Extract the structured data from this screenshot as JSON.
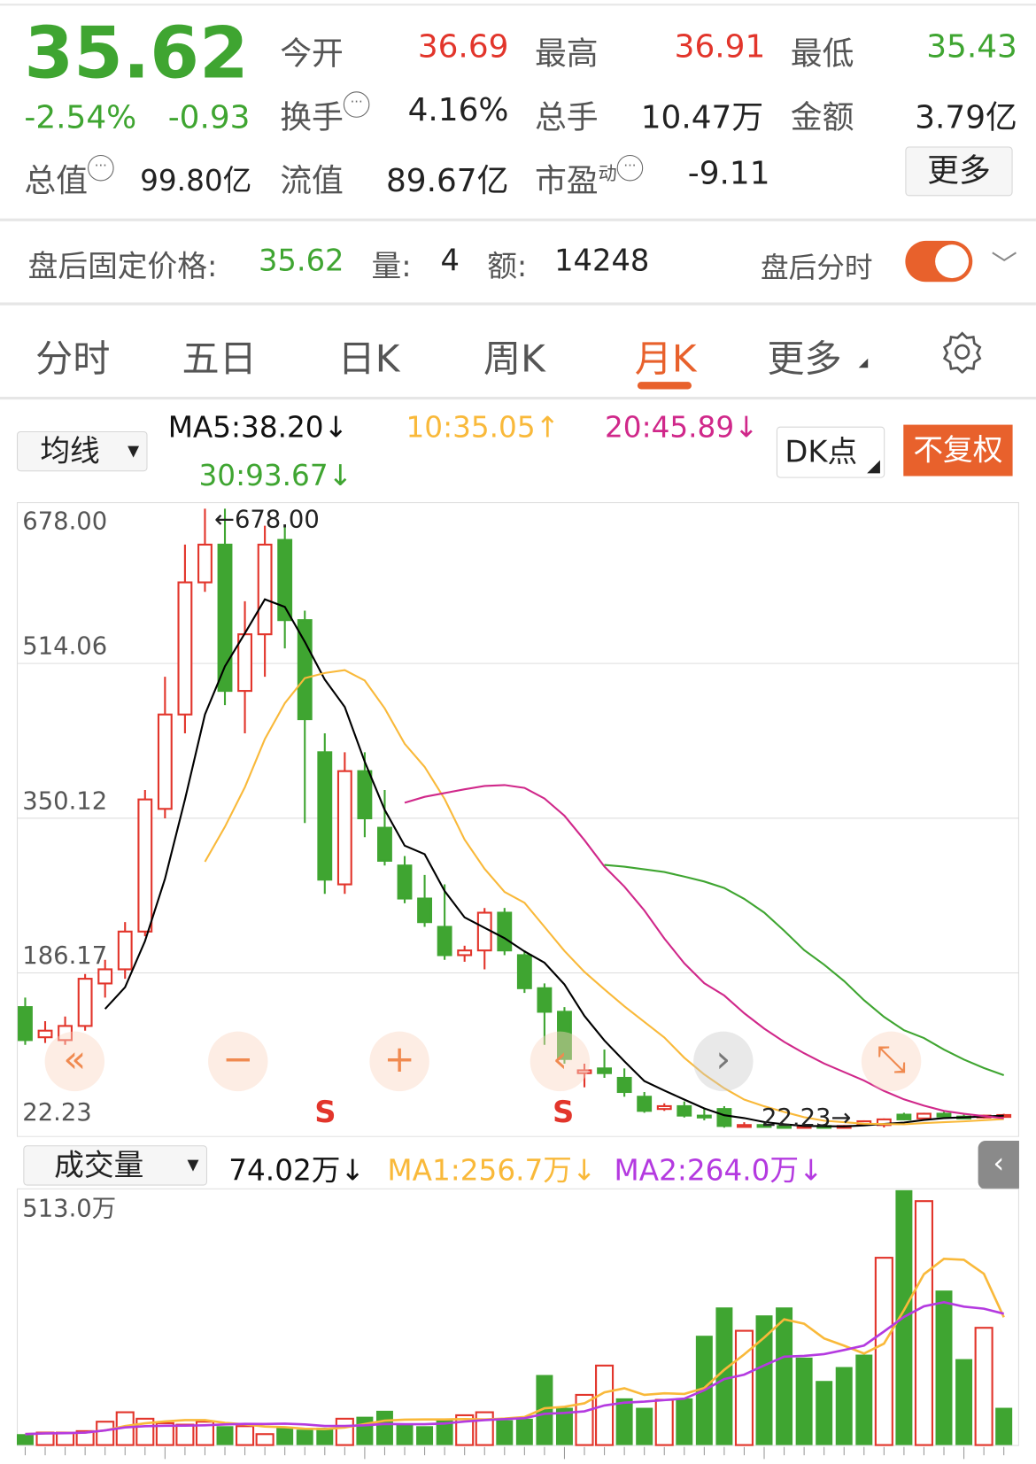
{
  "quote": {
    "price": "35.62",
    "change_pct": "-2.54%",
    "change": "-0.93",
    "open_label": "今开",
    "open": "36.69",
    "high_label": "最高",
    "high": "36.91",
    "low_label": "最低",
    "low": "35.43",
    "turnover_label": "换手",
    "turnover": "4.16%",
    "volume_label": "总手",
    "volume": "10.47万",
    "amount_label": "金额",
    "amount": "3.79亿",
    "mktcap_label": "总值",
    "mktcap": "99.80亿",
    "float_label": "流值",
    "float_cap": "89.67亿",
    "pe_label": "市盈",
    "pe_sup": "动",
    "pe": "-9.11",
    "more_label": "更多"
  },
  "after_hours": {
    "price_label": "盘后固定价格:",
    "price": "35.62",
    "vol_label": "量:",
    "vol": "4",
    "amt_label": "额:",
    "amt": "14248",
    "toggle_label": "盘后分时",
    "toggle_on": true
  },
  "tabs": [
    {
      "label": "分时"
    },
    {
      "label": "五日"
    },
    {
      "label": "日K"
    },
    {
      "label": "周K"
    },
    {
      "label": "月K",
      "active": true
    },
    {
      "label": "更多"
    }
  ],
  "ma_bar": {
    "selector": "均线",
    "ma5": "MA5:38.20↓",
    "ma10": "10:35.05↑",
    "ma20": "20:45.89↓",
    "ma30": "30:93.67↓",
    "dk_label": "DK点",
    "adjust_label": "不复权"
  },
  "colors": {
    "up": "#e2352b",
    "down": "#3fa531",
    "accent": "#e8612c",
    "ma5": "#000000",
    "ma10": "#f9b93a",
    "ma20": "#d0288a",
    "ma30": "#3fa531",
    "vma1": "#f9b93a",
    "vma2": "#b43ae0"
  },
  "overlay": {
    "s_marker": "S",
    "icons": [
      "double-left",
      "minus",
      "plus",
      "left-s",
      "right",
      "expand"
    ]
  },
  "chart_data": {
    "type": "candlestick",
    "yticks": [
      "678.00",
      "514.06",
      "350.12",
      "186.17",
      "22.23"
    ],
    "ylim": [
      22.23,
      678.0
    ],
    "max_label": "678.00",
    "min_label": "22.23",
    "candles": [
      [
        150,
        160,
        110,
        115
      ],
      [
        118,
        135,
        112,
        125
      ],
      [
        115,
        140,
        110,
        130
      ],
      [
        130,
        185,
        125,
        180
      ],
      [
        175,
        200,
        160,
        190
      ],
      [
        190,
        240,
        180,
        230
      ],
      [
        230,
        380,
        225,
        370
      ],
      [
        360,
        500,
        350,
        460
      ],
      [
        460,
        640,
        440,
        600
      ],
      [
        600,
        678,
        590,
        640
      ],
      [
        640,
        678,
        470,
        485
      ],
      [
        485,
        580,
        440,
        545
      ],
      [
        545,
        660,
        500,
        640
      ],
      [
        645,
        660,
        530,
        560
      ],
      [
        560,
        570,
        345,
        455
      ],
      [
        420,
        440,
        270,
        285
      ],
      [
        280,
        420,
        270,
        400
      ],
      [
        400,
        420,
        330,
        350
      ],
      [
        340,
        380,
        300,
        305
      ],
      [
        300,
        310,
        260,
        265
      ],
      [
        265,
        290,
        235,
        240
      ],
      [
        235,
        280,
        200,
        205
      ],
      [
        205,
        215,
        198,
        210
      ],
      [
        210,
        255,
        190,
        250
      ],
      [
        250,
        255,
        205,
        210
      ],
      [
        205,
        210,
        165,
        170
      ],
      [
        170,
        175,
        110,
        145
      ],
      [
        145,
        150,
        90,
        95
      ],
      [
        80,
        90,
        65,
        83
      ],
      [
        85,
        105,
        75,
        80
      ],
      [
        75,
        85,
        55,
        60
      ],
      [
        55,
        60,
        38,
        40
      ],
      [
        42,
        48,
        40,
        45
      ],
      [
        45,
        50,
        33,
        35
      ],
      [
        35,
        42,
        30,
        33
      ],
      [
        42,
        45,
        22.23,
        24
      ],
      [
        23,
        28,
        22.5,
        25
      ],
      [
        25,
        27,
        22.5,
        24
      ],
      [
        24,
        26,
        22.3,
        23
      ],
      [
        23,
        25,
        22.23,
        24
      ],
      [
        24,
        26,
        22.5,
        23
      ],
      [
        23,
        25,
        22.3,
        24
      ],
      [
        26,
        30,
        24,
        29
      ],
      [
        25,
        32,
        22.5,
        31
      ],
      [
        36,
        38,
        30,
        31
      ],
      [
        32,
        38,
        31,
        37
      ],
      [
        37,
        39,
        33,
        34
      ],
      [
        34,
        36,
        32,
        33
      ],
      [
        33,
        36,
        32,
        35
      ],
      [
        35.5,
        36.9,
        35.4,
        35.6
      ]
    ],
    "volume": {
      "max_label": "513.0万",
      "ma1": "MA1:256.7万↓",
      "ma2": "MA2:264.0万↓",
      "last": "74.02万↓",
      "selector": "成交量",
      "values": [
        22,
        25,
        25,
        28,
        47,
        66,
        53,
        44,
        41,
        47,
        38,
        38,
        22,
        35,
        31,
        35,
        53,
        57,
        69,
        41,
        38,
        53,
        60,
        66,
        50,
        53,
        141,
        75,
        101,
        160,
        94,
        75,
        91,
        94,
        220,
        277,
        230,
        261,
        277,
        176,
        129,
        157,
        182,
        377,
        513,
        491,
        311,
        173,
        236,
        75
      ],
      "up": [
        0,
        1,
        1,
        1,
        1,
        1,
        1,
        1,
        1,
        1,
        0,
        1,
        1,
        0,
        0,
        0,
        1,
        0,
        0,
        0,
        0,
        0,
        1,
        1,
        0,
        0,
        0,
        0,
        1,
        1,
        0,
        0,
        1,
        0,
        0,
        0,
        1,
        0,
        0,
        0,
        0,
        0,
        0,
        1,
        0,
        1,
        0,
        0,
        1,
        0
      ]
    }
  }
}
